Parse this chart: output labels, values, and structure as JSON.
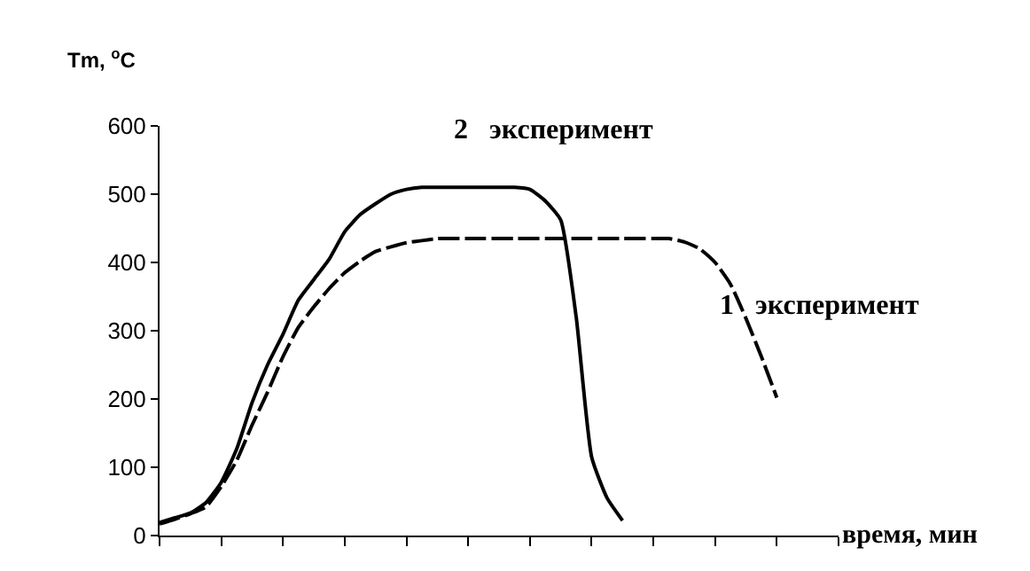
{
  "chart_data": {
    "type": "line",
    "ylabel": "Tm, $^{o}$C",
    "xlabel": "время, мин",
    "categories": [
      null,
      null,
      null,
      null,
      null,
      null,
      null,
      null,
      null,
      null,
      null,
      null,
      null,
      null,
      null,
      null,
      null,
      null,
      null,
      null,
      null,
      null,
      null,
      null,
      null,
      null,
      null,
      null,
      null,
      null,
      null,
      null,
      null,
      null,
      null,
      null,
      null,
      null,
      null,
      null,
      null,
      null,
      null,
      null,
      null
    ],
    "ylim": [
      0,
      600
    ],
    "yticks": [
      0,
      100,
      200,
      300,
      400,
      500,
      600
    ],
    "legend": false,
    "marker": "none",
    "series": [
      {
        "name": "1   эксперимент",
        "color": "#000000",
        "line_style": "dashed",
        "values": [
          17,
          24,
          32,
          42,
          72,
          110,
          162,
          210,
          262,
          305,
          335,
          362,
          385,
          402,
          416,
          423,
          429,
          432,
          435,
          435,
          435,
          435,
          435,
          435,
          435,
          435,
          435,
          435,
          435,
          435,
          435,
          435,
          435,
          435,
          430,
          420,
          400,
          368,
          318,
          262,
          202,
          null,
          null,
          null,
          null
        ]
      },
      {
        "name": "2   эксперимент",
        "color": "#000000",
        "line_style": "solid",
        "values": [
          19,
          26,
          33,
          48,
          78,
          127,
          195,
          250,
          295,
          345,
          375,
          405,
          445,
          470,
          486,
          500,
          507,
          510,
          510,
          510,
          510,
          510,
          510,
          510,
          507,
          490,
          462,
          320,
          115,
          55,
          22,
          null,
          null,
          null,
          null,
          null,
          null,
          null,
          null,
          null,
          null,
          null,
          null,
          null,
          null
        ]
      }
    ]
  }
}
